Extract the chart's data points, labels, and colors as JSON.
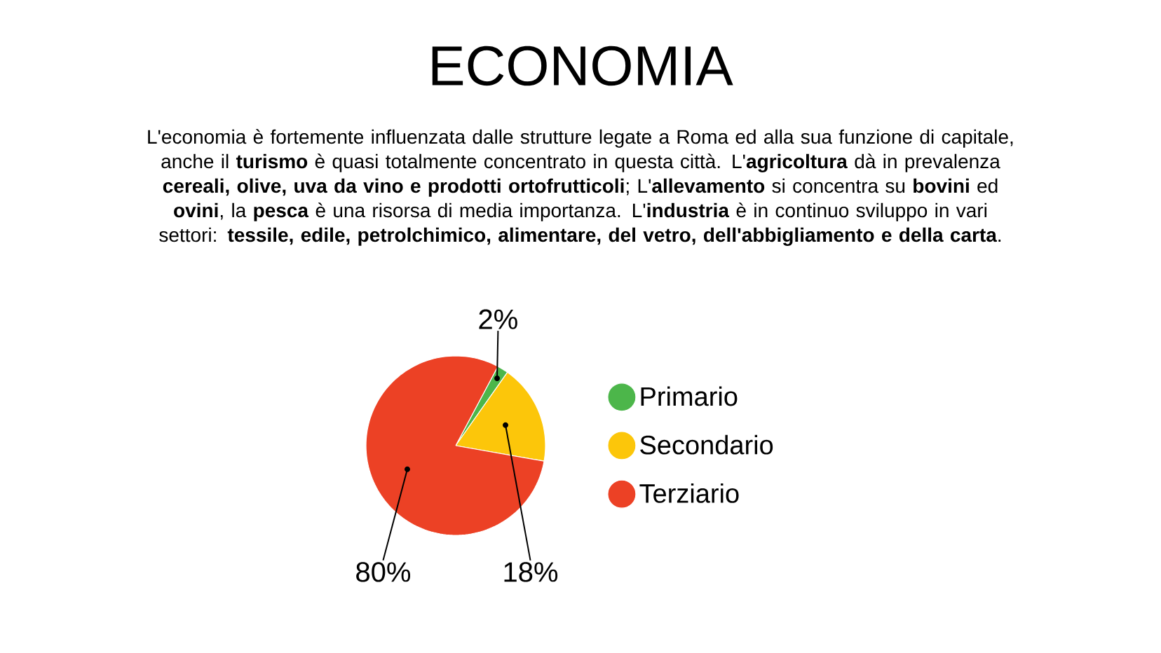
{
  "chart_data": {
    "type": "pie",
    "title": "ECONOMIA",
    "subtitle": "L'economia è fortemente influenzata dalle strutture legate a Roma ed alla sua funzione di capitale, anche il **turismo** è quasi totalmente concentrato in questa città. L'**agricoltura** dà in prevalenza **cereali, olive, uva da vino e prodotti ortofrutticoli**; L'**allevamento** si concentra su **bovini** ed **ovini**, la **pesca** è una risorsa di media importanza. L'**industria** è in continuo sviluppo in vari settori: **tessile, edile, petrolchimico, alimentare, del vetro, dell'abbigliamento e della carta**.",
    "categories": [
      "Primario",
      "Secondario",
      "Terziario"
    ],
    "values": [
      2,
      18,
      80
    ],
    "colors": [
      "#4cb64a",
      "#fcc60a",
      "#ec4125"
    ],
    "value_labels": [
      "2%",
      "18%",
      "80%"
    ],
    "legend": "right"
  }
}
